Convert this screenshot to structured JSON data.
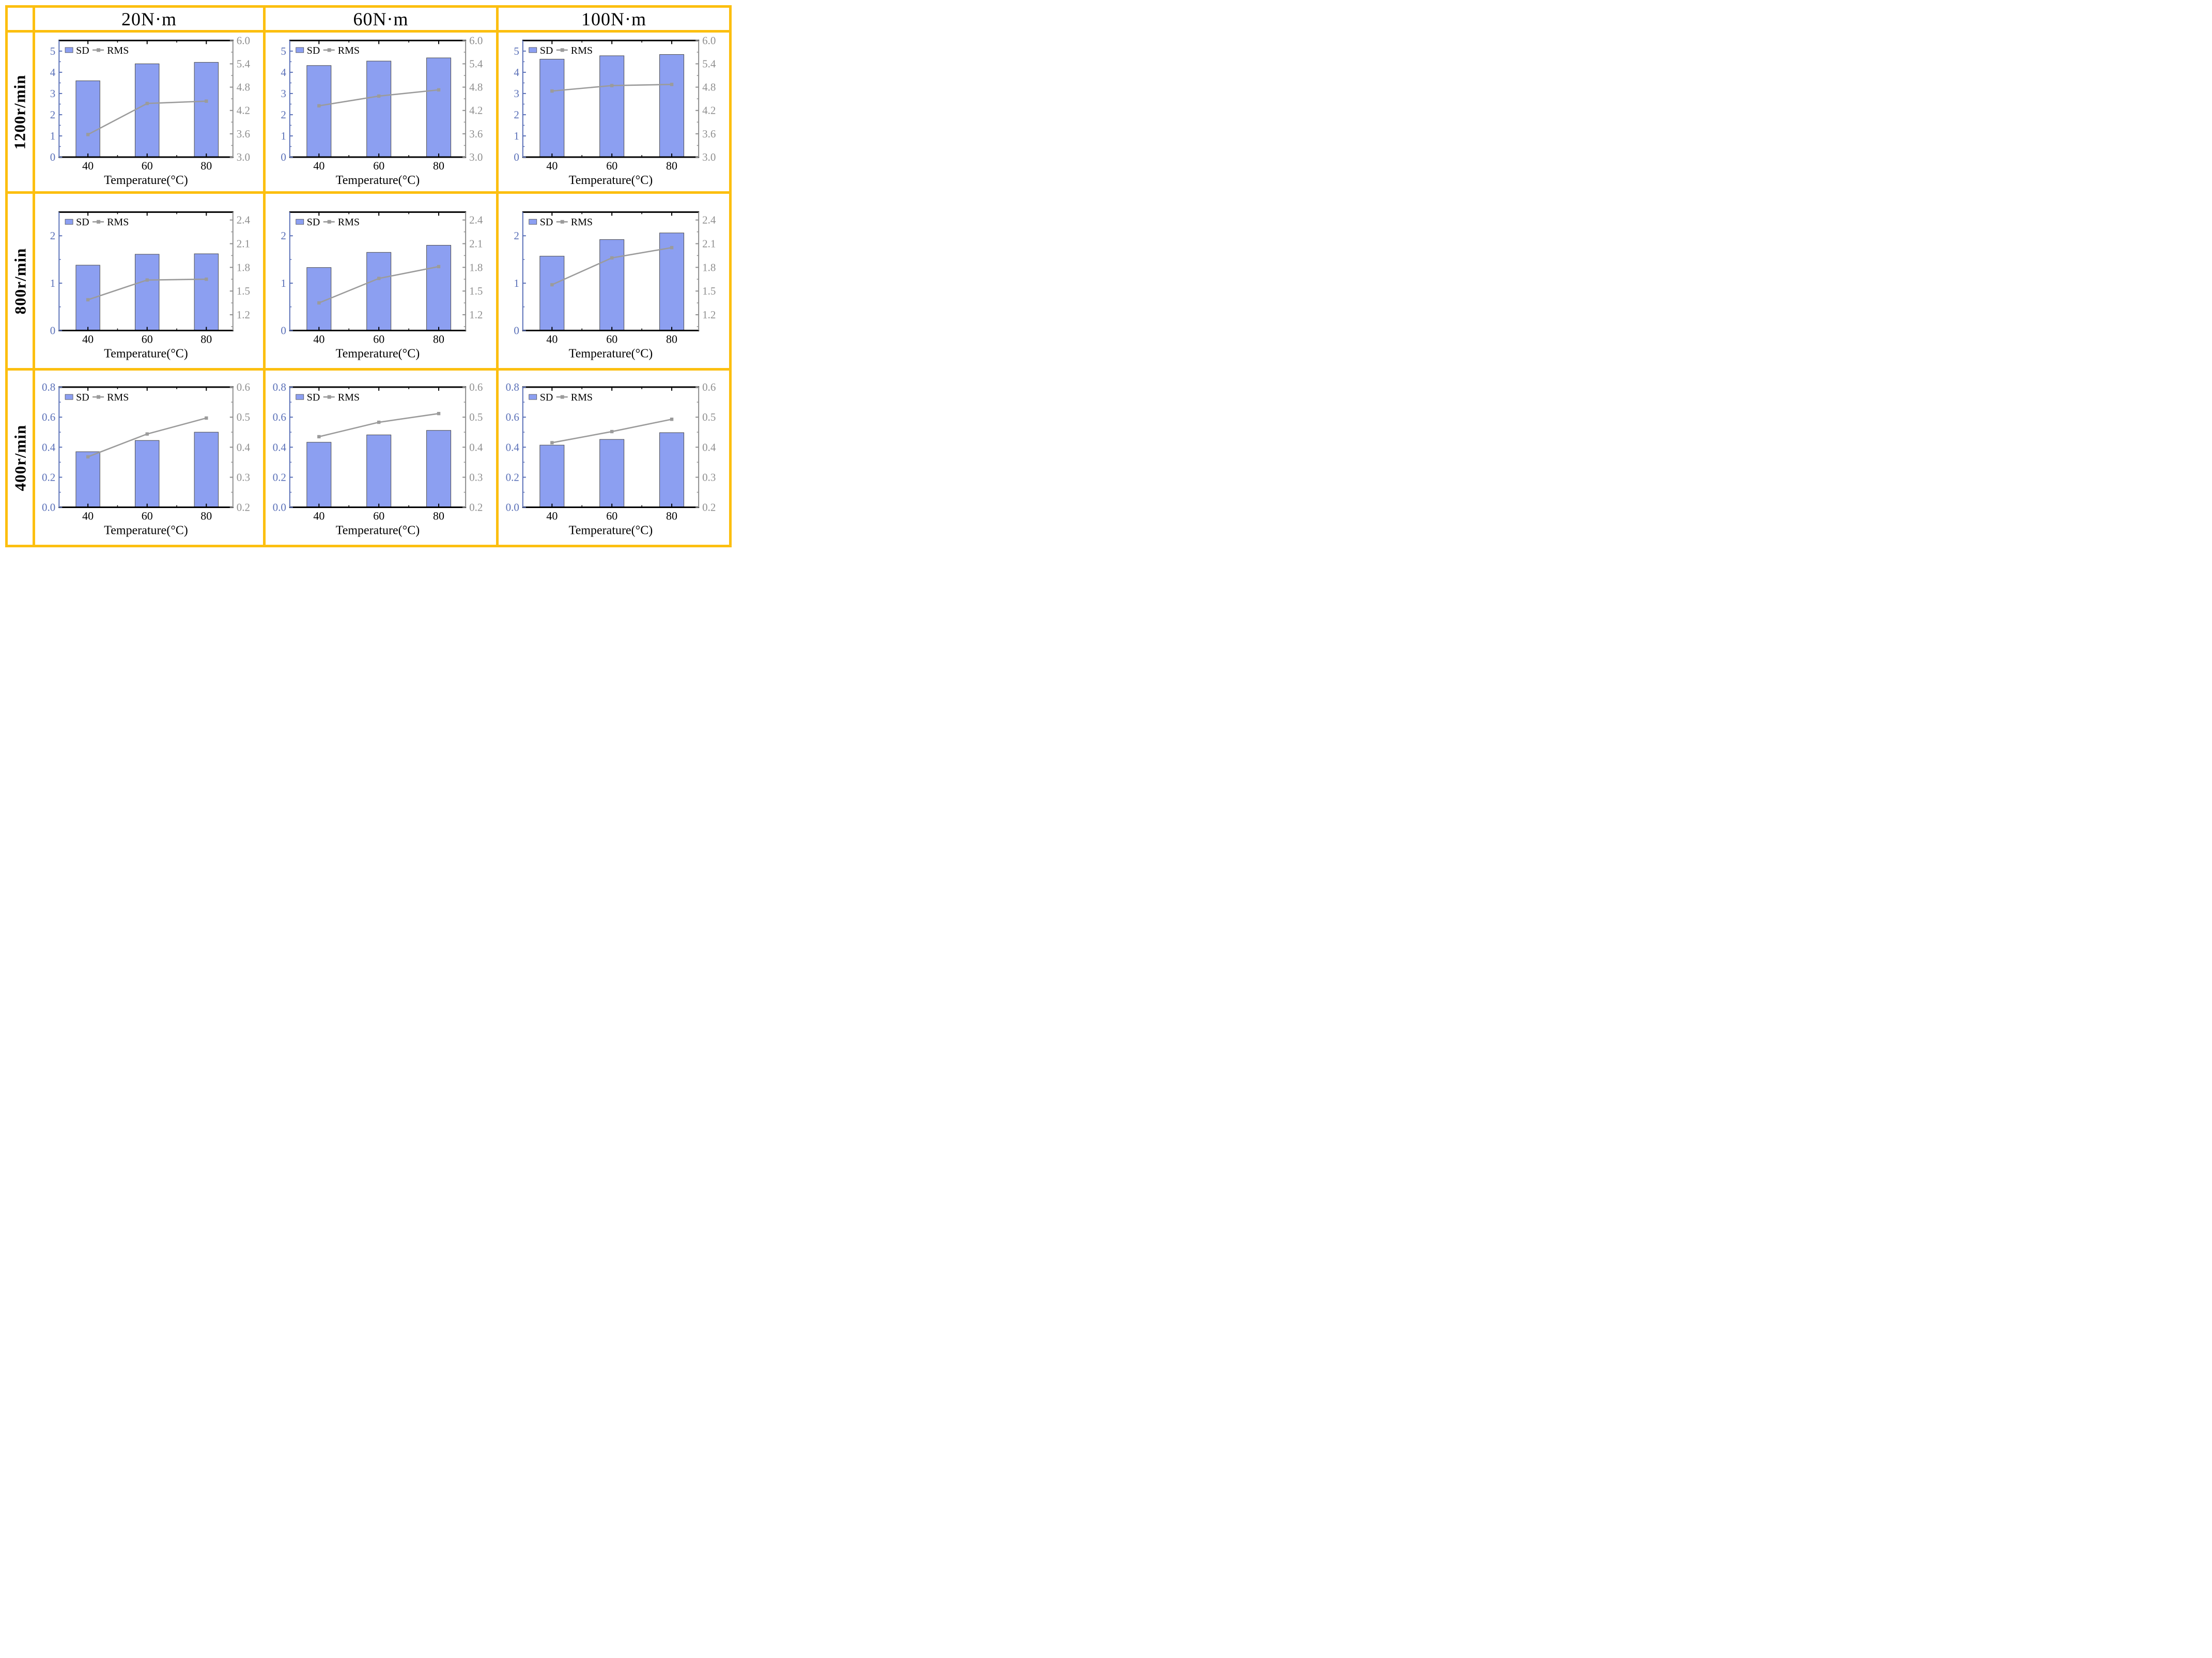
{
  "table": {
    "corner": "",
    "col_headers": [
      "20N·m",
      "60N·m",
      "100N·m"
    ],
    "row_headers": [
      "1200r/min",
      "800r/min",
      "400r/min"
    ]
  },
  "legend": {
    "sd_label": "SD",
    "rms_label": "RMS"
  },
  "xlabel": "Temperature(°C)",
  "categories": [
    "40",
    "60",
    "80"
  ],
  "colors": {
    "border_orange": "#FCBF10",
    "bar_fill": "#8C9FF1",
    "bar_border": "#4D4D4D",
    "rms_gray": "#9B9B9B",
    "left_axis_blue": "#5A70B8",
    "right_axis_gray": "#8F8F8F",
    "frame_black": "#000000"
  },
  "chart_data": [
    {
      "type": "bar+line",
      "row": "1200r/min",
      "col": "20N·m",
      "xlabel": "Temperature(°C)",
      "categories": [
        "40",
        "60",
        "80"
      ],
      "series": [
        {
          "name": "SD",
          "axis": "left",
          "type": "bar",
          "values": [
            3.6,
            4.4,
            4.47
          ]
        },
        {
          "name": "RMS",
          "axis": "right",
          "type": "line",
          "values": [
            3.58,
            4.38,
            4.44
          ]
        }
      ],
      "left_axis": {
        "min": 0,
        "max": 5.5,
        "tick_labels": [
          "0",
          "1",
          "2",
          "3",
          "4",
          "5"
        ]
      },
      "right_axis": {
        "min": 3.0,
        "max": 6.0,
        "tick_labels": [
          "3.0",
          "3.6",
          "4.2",
          "4.8",
          "5.4",
          "6.0"
        ]
      }
    },
    {
      "type": "bar+line",
      "row": "1200r/min",
      "col": "60N·m",
      "xlabel": "Temperature(°C)",
      "categories": [
        "40",
        "60",
        "80"
      ],
      "series": [
        {
          "name": "SD",
          "axis": "left",
          "type": "bar",
          "values": [
            4.32,
            4.53,
            4.68
          ]
        },
        {
          "name": "RMS",
          "axis": "right",
          "type": "line",
          "values": [
            4.32,
            4.57,
            4.73
          ]
        }
      ],
      "left_axis": {
        "min": 0,
        "max": 5.5,
        "tick_labels": [
          "0",
          "1",
          "2",
          "3",
          "4",
          "5"
        ]
      },
      "right_axis": {
        "min": 3.0,
        "max": 6.0,
        "tick_labels": [
          "3.0",
          "3.6",
          "4.2",
          "4.8",
          "5.4",
          "6.0"
        ]
      }
    },
    {
      "type": "bar+line",
      "row": "1200r/min",
      "col": "100N·m",
      "xlabel": "Temperature(°C)",
      "categories": [
        "40",
        "60",
        "80"
      ],
      "series": [
        {
          "name": "SD",
          "axis": "left",
          "type": "bar",
          "values": [
            4.62,
            4.78,
            4.84
          ]
        },
        {
          "name": "RMS",
          "axis": "right",
          "type": "line",
          "values": [
            4.7,
            4.84,
            4.87
          ]
        }
      ],
      "left_axis": {
        "min": 0,
        "max": 5.5,
        "tick_labels": [
          "0",
          "1",
          "2",
          "3",
          "4",
          "5"
        ]
      },
      "right_axis": {
        "min": 3.0,
        "max": 6.0,
        "tick_labels": [
          "3.0",
          "3.6",
          "4.2",
          "4.8",
          "5.4",
          "6.0"
        ]
      }
    },
    {
      "type": "bar+line",
      "row": "800r/min",
      "col": "20N·m",
      "xlabel": "Temperature(°C)",
      "categories": [
        "40",
        "60",
        "80"
      ],
      "series": [
        {
          "name": "SD",
          "axis": "left",
          "type": "bar",
          "values": [
            1.38,
            1.61,
            1.62
          ]
        },
        {
          "name": "RMS",
          "axis": "right",
          "type": "line",
          "values": [
            1.39,
            1.64,
            1.65
          ]
        }
      ],
      "left_axis": {
        "min": 0,
        "max": 2.5,
        "tick_labels": [
          "0",
          "1",
          "2"
        ]
      },
      "right_axis": {
        "min": 1.0,
        "max": 2.5,
        "tick_labels": [
          "1.2",
          "1.5",
          "1.8",
          "2.1",
          "2.4"
        ]
      }
    },
    {
      "type": "bar+line",
      "row": "800r/min",
      "col": "60N·m",
      "xlabel": "Temperature(°C)",
      "categories": [
        "40",
        "60",
        "80"
      ],
      "series": [
        {
          "name": "SD",
          "axis": "left",
          "type": "bar",
          "values": [
            1.33,
            1.65,
            1.8
          ]
        },
        {
          "name": "RMS",
          "axis": "right",
          "type": "line",
          "values": [
            1.35,
            1.66,
            1.81
          ]
        }
      ],
      "left_axis": {
        "min": 0,
        "max": 2.5,
        "tick_labels": [
          "0",
          "1",
          "2"
        ]
      },
      "right_axis": {
        "min": 1.0,
        "max": 2.5,
        "tick_labels": [
          "1.2",
          "1.5",
          "1.8",
          "2.1",
          "2.4"
        ]
      }
    },
    {
      "type": "bar+line",
      "row": "800r/min",
      "col": "100N·m",
      "xlabel": "Temperature(°C)",
      "categories": [
        "40",
        "60",
        "80"
      ],
      "series": [
        {
          "name": "SD",
          "axis": "left",
          "type": "bar",
          "values": [
            1.57,
            1.92,
            2.06
          ]
        },
        {
          "name": "RMS",
          "axis": "right",
          "type": "line",
          "values": [
            1.58,
            1.92,
            2.05
          ]
        }
      ],
      "left_axis": {
        "min": 0,
        "max": 2.5,
        "tick_labels": [
          "0",
          "1",
          "2"
        ]
      },
      "right_axis": {
        "min": 1.0,
        "max": 2.5,
        "tick_labels": [
          "1.2",
          "1.5",
          "1.8",
          "2.1",
          "2.4"
        ]
      }
    },
    {
      "type": "bar+line",
      "row": "400r/min",
      "col": "20N·m",
      "xlabel": "Temperature(°C)",
      "categories": [
        "40",
        "60",
        "80"
      ],
      "series": [
        {
          "name": "SD",
          "axis": "left",
          "type": "bar",
          "values": [
            0.37,
            0.445,
            0.5
          ]
        },
        {
          "name": "RMS",
          "axis": "right",
          "type": "line",
          "values": [
            0.368,
            0.444,
            0.497
          ]
        }
      ],
      "left_axis": {
        "min": 0,
        "max": 0.8,
        "tick_labels": [
          "0.0",
          "0.2",
          "0.4",
          "0.6",
          "0.8"
        ]
      },
      "right_axis": {
        "min": 0.2,
        "max": 0.6,
        "tick_labels": [
          "0.2",
          "0.3",
          "0.4",
          "0.5",
          "0.6"
        ]
      }
    },
    {
      "type": "bar+line",
      "row": "400r/min",
      "col": "60N·m",
      "xlabel": "Temperature(°C)",
      "categories": [
        "40",
        "60",
        "80"
      ],
      "series": [
        {
          "name": "SD",
          "axis": "left",
          "type": "bar",
          "values": [
            0.433,
            0.482,
            0.512
          ]
        },
        {
          "name": "RMS",
          "axis": "right",
          "type": "line",
          "values": [
            0.435,
            0.483,
            0.512
          ]
        }
      ],
      "left_axis": {
        "min": 0,
        "max": 0.8,
        "tick_labels": [
          "0.0",
          "0.2",
          "0.4",
          "0.6",
          "0.8"
        ]
      },
      "right_axis": {
        "min": 0.2,
        "max": 0.6,
        "tick_labels": [
          "0.2",
          "0.3",
          "0.4",
          "0.5",
          "0.6"
        ]
      }
    },
    {
      "type": "bar+line",
      "row": "400r/min",
      "col": "100N·m",
      "xlabel": "Temperature(°C)",
      "categories": [
        "40",
        "60",
        "80"
      ],
      "series": [
        {
          "name": "SD",
          "axis": "left",
          "type": "bar",
          "values": [
            0.414,
            0.452,
            0.497
          ]
        },
        {
          "name": "RMS",
          "axis": "right",
          "type": "line",
          "values": [
            0.415,
            0.452,
            0.493
          ]
        }
      ],
      "left_axis": {
        "min": 0,
        "max": 0.8,
        "tick_labels": [
          "0.0",
          "0.2",
          "0.4",
          "0.6",
          "0.8"
        ]
      },
      "right_axis": {
        "min": 0.2,
        "max": 0.6,
        "tick_labels": [
          "0.2",
          "0.3",
          "0.4",
          "0.5",
          "0.6"
        ]
      }
    }
  ]
}
